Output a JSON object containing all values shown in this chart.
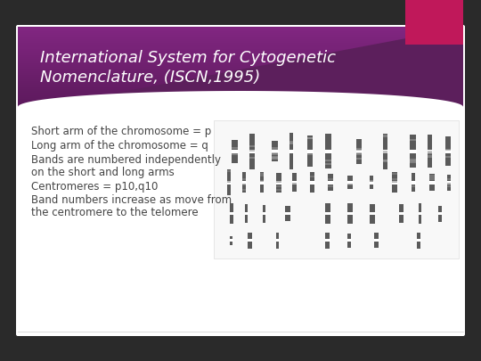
{
  "title_line1": "International System for Cytogenetic",
  "title_line2": "Nomenclature, (ISCN,1995)",
  "bullet_lines": [
    "Short arm of the chromosome = p",
    "Long arm of the chromosome = q",
    "Bands are numbered independently",
    "on the short and long arms",
    "Centromeres = p10,q10",
    "Band numbers increase as move from",
    "the centromere to the telomere"
  ],
  "bg_color": "#ffffff",
  "slide_bg": "#f0f0f0",
  "header_color_left": "#6b2d6b",
  "header_color_right": "#4a1a4a",
  "header_gradient_mid": "#7d3580",
  "pink_tab_color": "#c0185a",
  "text_color": "#333333",
  "title_text_color": "#ffffff",
  "outer_bg": "#2a2a2a",
  "font_size_title": 13,
  "font_size_body": 8.5
}
